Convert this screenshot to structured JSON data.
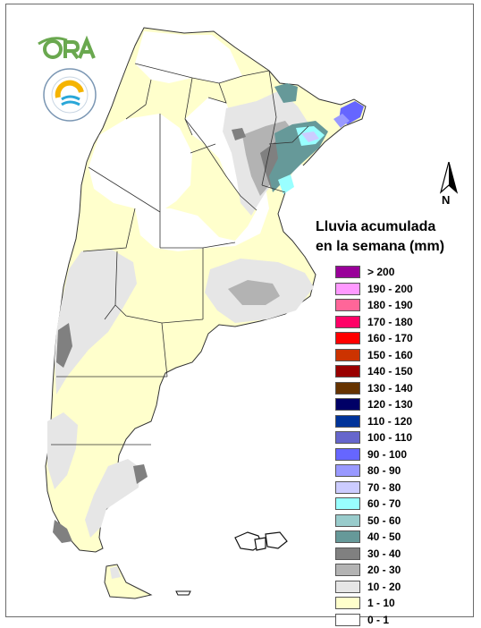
{
  "logo": {
    "ora_text": "ORA",
    "smn_ring_text": "SERVICIO METEOROLÓGICO NACIONAL · ARGENTINA"
  },
  "north_label": "N",
  "legend": {
    "title_line1": "Lluvia acumulada",
    "title_line2": "en la semana (mm)",
    "items": [
      {
        "label": "> 200",
        "color": "#990099"
      },
      {
        "label": "190 - 200",
        "color": "#ff99ff"
      },
      {
        "label": "180 - 190",
        "color": "#ff6699"
      },
      {
        "label": "170 - 180",
        "color": "#ff0066"
      },
      {
        "label": "160 - 170",
        "color": "#ff0000"
      },
      {
        "label": "150 - 160",
        "color": "#cc3300"
      },
      {
        "label": "140 - 150",
        "color": "#990000"
      },
      {
        "label": "130 - 140",
        "color": "#663300"
      },
      {
        "label": "120 - 130",
        "color": "#000066"
      },
      {
        "label": "110 - 120",
        "color": "#003399"
      },
      {
        "label": "100 - 110",
        "color": "#6666cc"
      },
      {
        "label": "90 - 100",
        "color": "#6666ff"
      },
      {
        "label": "80 - 90",
        "color": "#9999ff"
      },
      {
        "label": "70 - 80",
        "color": "#ccccff"
      },
      {
        "label": "60 - 70",
        "color": "#99ffff"
      },
      {
        "label": "50 - 60",
        "color": "#99cccc"
      },
      {
        "label": "40 - 50",
        "color": "#669999"
      },
      {
        "label": "30 - 40",
        "color": "#808080"
      },
      {
        "label": "20 - 30",
        "color": "#b3b3b3"
      },
      {
        "label": "10 - 20",
        "color": "#e6e6e6"
      },
      {
        "label": "1 - 10",
        "color": "#ffffcc"
      },
      {
        "label": "0 - 1",
        "color": "#ffffff"
      }
    ]
  }
}
